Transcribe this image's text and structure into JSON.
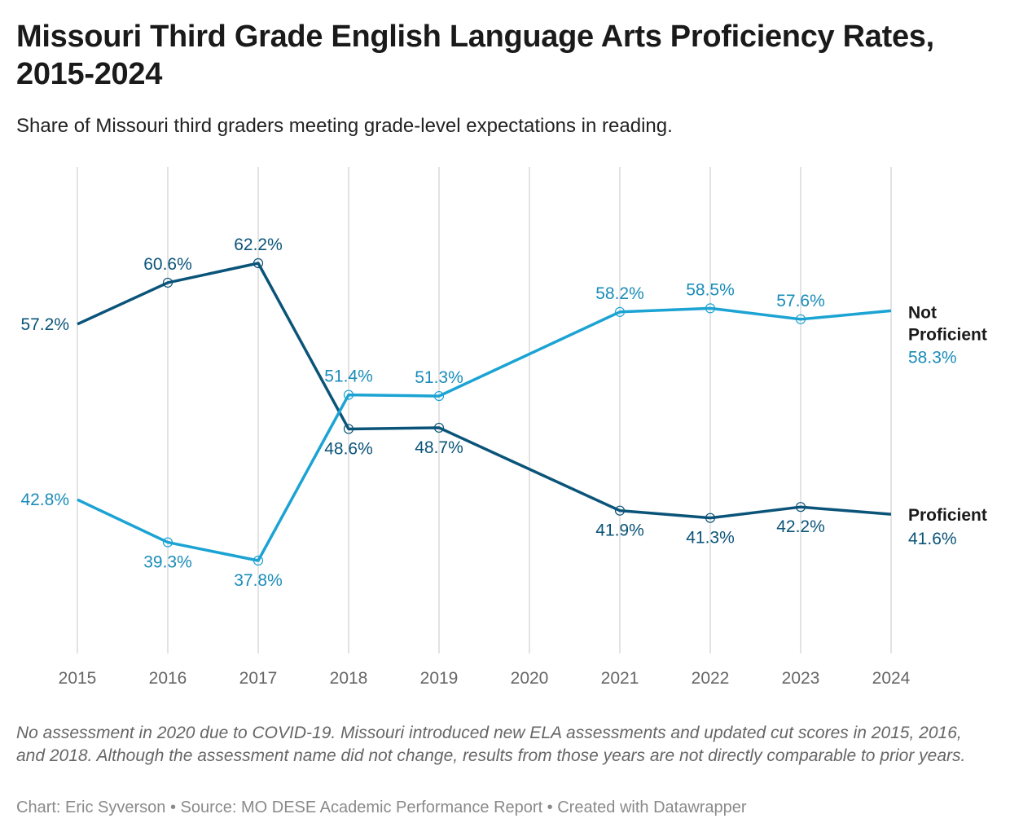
{
  "title": "Missouri Third Grade English Language Arts Proficiency Rates, 2015-2024",
  "subtitle": "Share of Missouri third graders meeting grade-level expectations in reading.",
  "notes": "No assessment in 2020 due to COVID-19. Missouri introduced new ELA assessments and updated cut scores in 2015, 2016, and 2018. Although the assessment name did not change, results from those years are not directly comparable to prior years.",
  "credits": "Chart: Eric Syverson • Source: MO DESE Academic Performance Report • Created with Datawrapper",
  "chart_data": {
    "type": "line",
    "x": [
      "2015",
      "2016",
      "2017",
      "2018",
      "2019",
      "2020",
      "2021",
      "2022",
      "2023",
      "2024"
    ],
    "ylim": [
      30,
      70
    ],
    "grid": "vertical",
    "legend": "direct labels at right",
    "series": [
      {
        "name": "Proficient",
        "color": "#0b5479",
        "label_color": "#0b5479",
        "values": [
          57.2,
          60.6,
          62.2,
          48.6,
          48.7,
          null,
          41.9,
          41.3,
          42.2,
          41.6
        ],
        "labels": [
          "57.2%",
          "60.6%",
          "62.2%",
          "48.6%",
          "48.7%",
          "",
          "41.9%",
          "41.3%",
          "42.2%",
          "41.6%"
        ]
      },
      {
        "name": "Not Proficient",
        "color": "#1ba3d3",
        "label_color": "#1a8cb9",
        "values": [
          42.8,
          39.3,
          37.8,
          51.4,
          51.3,
          null,
          58.2,
          58.5,
          57.6,
          58.3
        ],
        "labels": [
          "42.8%",
          "39.3%",
          "37.8%",
          "51.4%",
          "51.3%",
          "",
          "58.2%",
          "58.5%",
          "57.6%",
          "58.3%"
        ]
      }
    ]
  }
}
